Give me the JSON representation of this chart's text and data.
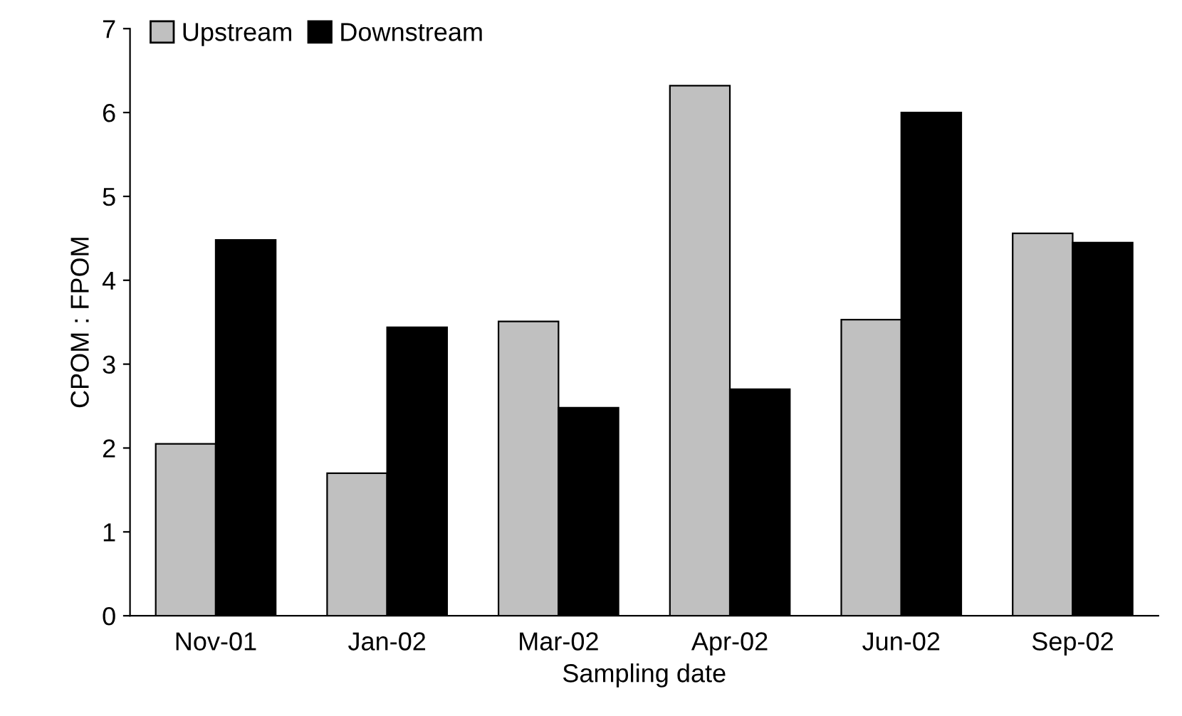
{
  "chart_data": {
    "type": "bar",
    "xlabel": "Sampling date",
    "ylabel": "CPOM : FPOM",
    "categories": [
      "Nov-01",
      "Jan-02",
      "Mar-02",
      "Apr-02",
      "Jun-02",
      "Sep-02"
    ],
    "series": [
      {
        "name": "Upstream",
        "color": "#c0c0c0",
        "values": [
          2.05,
          1.7,
          3.51,
          6.32,
          3.53,
          4.56
        ]
      },
      {
        "name": "Downstream",
        "color": "#000000",
        "values": [
          4.48,
          3.44,
          2.48,
          2.7,
          6.0,
          4.45
        ]
      }
    ],
    "ylim": [
      0,
      7
    ],
    "yticks": [
      0,
      1,
      2,
      3,
      4,
      5,
      6,
      7
    ],
    "grid": false,
    "legend": "top left"
  }
}
